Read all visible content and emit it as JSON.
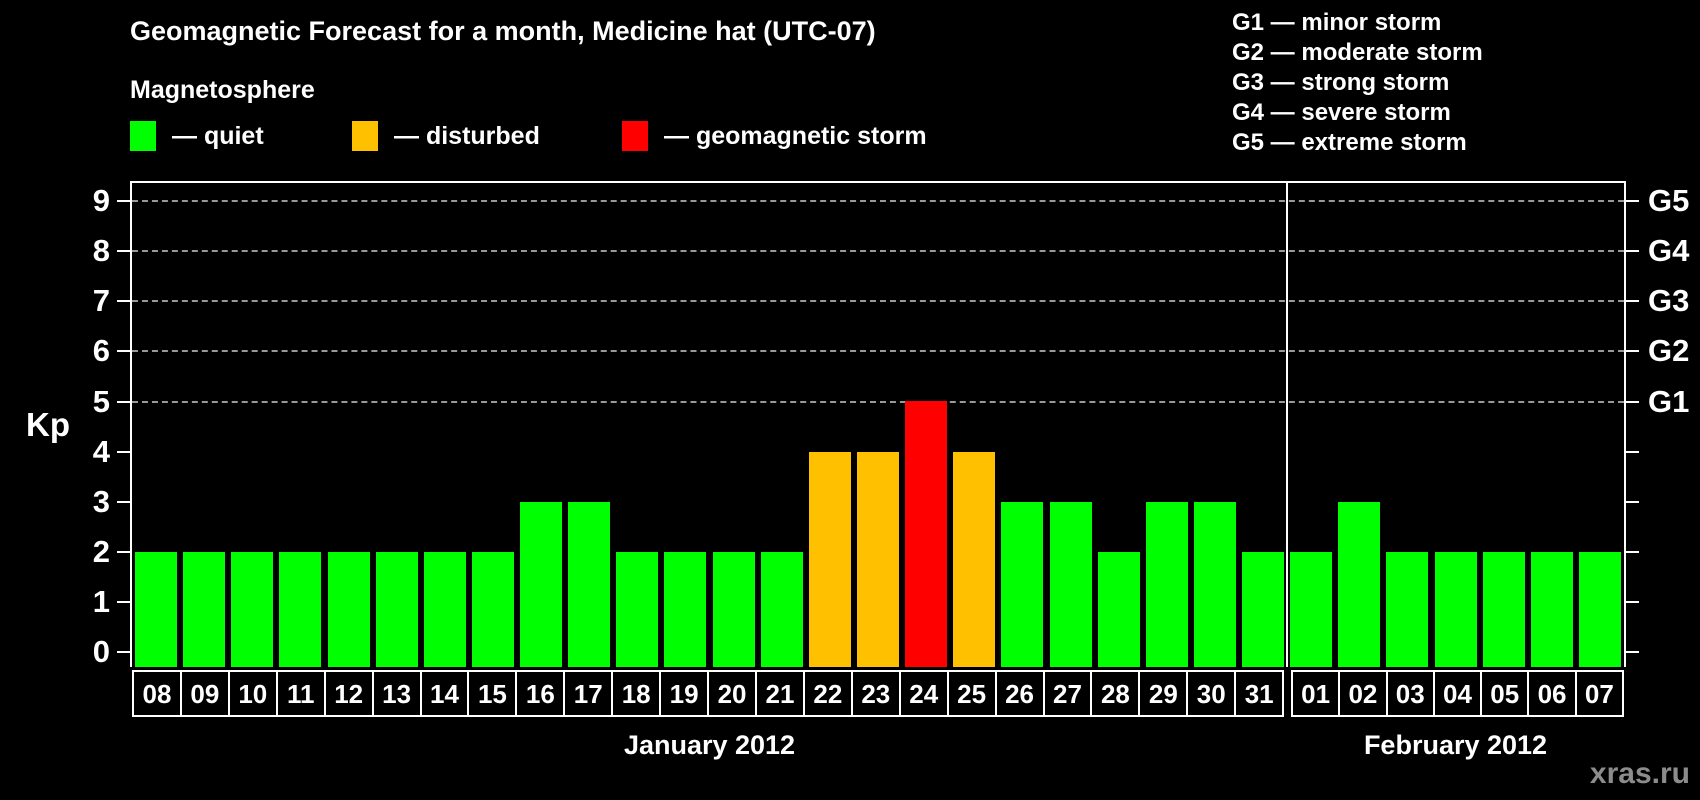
{
  "header": {
    "title": "Geomagnetic Forecast for a month, Medicine hat (UTC-07)",
    "subtitle": "Magnetosphere",
    "legend": [
      {
        "name": "quiet",
        "label": "— quiet",
        "color": "#00FF00"
      },
      {
        "name": "disturbed",
        "label": "— disturbed",
        "color": "#FFC000"
      },
      {
        "name": "geomagnetic-storm",
        "label": "— geomagnetic storm",
        "color": "#FF0000"
      }
    ]
  },
  "g_legend": [
    "G1 — minor storm",
    "G2 — moderate storm",
    "G3 — strong storm",
    "G4 — severe storm",
    "G5 — extreme storm"
  ],
  "chart_data": {
    "type": "bar",
    "title": "Geomagnetic Forecast for a month, Medicine hat (UTC-07)",
    "ylabel": "Kp",
    "ylim": [
      0,
      9
    ],
    "yticks": [
      0,
      1,
      2,
      3,
      4,
      5,
      6,
      7,
      8,
      9
    ],
    "gridlines_at": [
      5,
      6,
      7,
      8,
      9
    ],
    "grid": "horizontal dashed lines at Kp 5-9 only",
    "right_axis_labels": [
      {
        "label": "G1",
        "kp": 5
      },
      {
        "label": "G2",
        "kp": 6
      },
      {
        "label": "G3",
        "kp": 7
      },
      {
        "label": "G4",
        "kp": 8
      },
      {
        "label": "G5",
        "kp": 9
      }
    ],
    "colors": {
      "quiet": "#00FF00",
      "disturbed": "#FFC000",
      "storm": "#FF0000"
    },
    "color_rules": {
      "quiet_max_kp": 3,
      "disturbed_kp": 4,
      "storm_min_kp": 5
    },
    "months": [
      {
        "label": "January 2012",
        "days": [
          "08",
          "09",
          "10",
          "11",
          "12",
          "13",
          "14",
          "15",
          "16",
          "17",
          "18",
          "19",
          "20",
          "21",
          "22",
          "23",
          "24",
          "25",
          "26",
          "27",
          "28",
          "29",
          "30",
          "31"
        ],
        "values": [
          2,
          2,
          2,
          2,
          2,
          2,
          2,
          2,
          3,
          3,
          2,
          2,
          2,
          2,
          4,
          4,
          5,
          4,
          3,
          3,
          2,
          3,
          3,
          2
        ]
      },
      {
        "label": "February 2012",
        "days": [
          "01",
          "02",
          "03",
          "04",
          "05",
          "06",
          "07"
        ],
        "values": [
          2,
          3,
          2,
          2,
          2,
          2,
          2
        ]
      }
    ]
  },
  "watermark": "xras.ru"
}
